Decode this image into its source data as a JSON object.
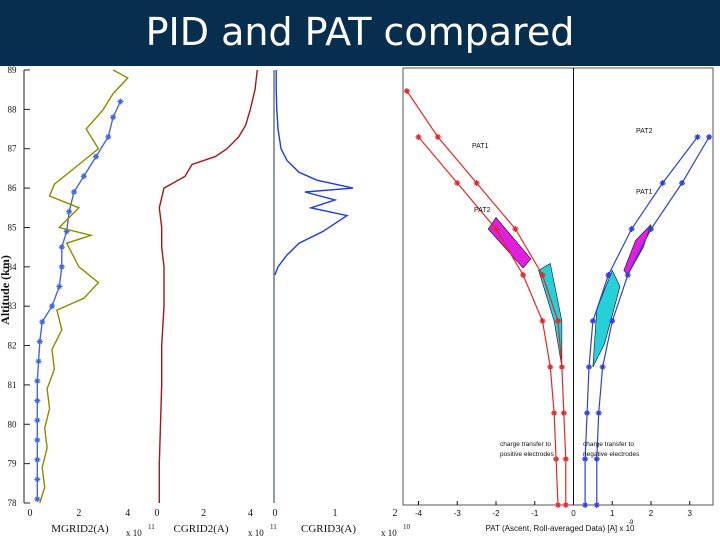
{
  "slide": {
    "title": "PID and PAT compared"
  },
  "chart_data": [
    {
      "type": "line",
      "ylabel": "Altitude (km)",
      "ylim": [
        78,
        89
      ],
      "yticks": [
        "89",
        "88",
        "87",
        "86",
        "85",
        "84",
        "83",
        "82",
        "81",
        "80",
        "79",
        "78"
      ],
      "panels": [
        {
          "xlabel": "MGRID2(A)",
          "multiplier": "x 10",
          "exponent": "11",
          "xticks": [
            "0",
            "2",
            "4"
          ],
          "xlim": [
            0,
            4.5
          ],
          "series": [
            {
              "color": "#4468d8",
              "marker": "*",
              "points": [
                [
                  0.3,
                  78.1
                ],
                [
                  0.3,
                  78.6
                ],
                [
                  0.3,
                  79.1
                ],
                [
                  0.3,
                  79.6
                ],
                [
                  0.3,
                  80.1
                ],
                [
                  0.3,
                  80.6
                ],
                [
                  0.3,
                  81.1
                ],
                [
                  0.35,
                  81.6
                ],
                [
                  0.4,
                  82.1
                ],
                [
                  0.5,
                  82.6
                ],
                [
                  0.9,
                  83.0
                ],
                [
                  1.2,
                  83.5
                ],
                [
                  1.3,
                  84.0
                ],
                [
                  1.3,
                  84.5
                ],
                [
                  1.5,
                  84.9
                ],
                [
                  1.6,
                  85.4
                ],
                [
                  1.8,
                  85.9
                ],
                [
                  2.2,
                  86.3
                ],
                [
                  2.7,
                  86.8
                ],
                [
                  3.2,
                  87.3
                ],
                [
                  3.4,
                  87.8
                ],
                [
                  3.7,
                  88.2
                ]
              ]
            },
            {
              "color": "#8b8b00",
              "points": [
                [
                  0.4,
                  78.0
                ],
                [
                  0.6,
                  78.4
                ],
                [
                  0.5,
                  78.9
                ],
                [
                  0.7,
                  79.4
                ],
                [
                  0.6,
                  79.9
                ],
                [
                  0.8,
                  80.4
                ],
                [
                  0.7,
                  80.9
                ],
                [
                  1.0,
                  81.4
                ],
                [
                  0.9,
                  81.9
                ],
                [
                  1.3,
                  82.4
                ],
                [
                  1.1,
                  82.9
                ],
                [
                  2.2,
                  83.2
                ],
                [
                  2.8,
                  83.6
                ],
                [
                  2.0,
                  84.0
                ],
                [
                  1.5,
                  84.6
                ],
                [
                  2.5,
                  84.8
                ],
                [
                  1.2,
                  85.0
                ],
                [
                  2.0,
                  85.5
                ],
                [
                  0.8,
                  85.8
                ],
                [
                  1.0,
                  86.1
                ],
                [
                  2.0,
                  86.6
                ],
                [
                  2.8,
                  87.0
                ],
                [
                  2.3,
                  87.5
                ],
                [
                  3.0,
                  88.0
                ],
                [
                  3.4,
                  88.4
                ],
                [
                  4.0,
                  88.8
                ],
                [
                  3.4,
                  89.0
                ]
              ]
            }
          ]
        },
        {
          "xlabel": "CGRID2(A)",
          "multiplier": "x 10",
          "exponent": "11",
          "xticks": [
            "0",
            "2",
            "4"
          ],
          "xlim": [
            -0.3,
            4.5
          ],
          "series": [
            {
              "color": "#a01a1a",
              "points": [
                [
                  0.1,
                  78.0
                ],
                [
                  0.1,
                  79.0
                ],
                [
                  0.15,
                  80.0
                ],
                [
                  0.2,
                  81.0
                ],
                [
                  0.2,
                  82.0
                ],
                [
                  0.3,
                  83.0
                ],
                [
                  0.3,
                  84.0
                ],
                [
                  0.2,
                  84.5
                ],
                [
                  0.2,
                  85.0
                ],
                [
                  0.1,
                  85.5
                ],
                [
                  0.3,
                  86.0
                ],
                [
                  1.2,
                  86.3
                ],
                [
                  1.5,
                  86.6
                ],
                [
                  2.5,
                  86.8
                ],
                [
                  3.0,
                  87.0
                ],
                [
                  3.5,
                  87.3
                ],
                [
                  3.8,
                  87.6
                ],
                [
                  4.0,
                  88.0
                ],
                [
                  4.2,
                  88.5
                ],
                [
                  4.3,
                  89.0
                ]
              ]
            }
          ]
        },
        {
          "xlabel": "CGRID3(A)",
          "multiplier": "x 10",
          "exponent": "10",
          "xticks": [
            "0",
            "1",
            "2"
          ],
          "xlim": [
            -0.05,
            2.0
          ],
          "series": [
            {
              "color": "#1e3cd8",
              "points": [
                [
                  0.0,
                  83.8
                ],
                [
                  0.05,
                  84.0
                ],
                [
                  0.2,
                  84.3
                ],
                [
                  0.4,
                  84.6
                ],
                [
                  0.8,
                  84.9
                ],
                [
                  1.2,
                  85.3
                ],
                [
                  0.6,
                  85.5
                ],
                [
                  1.0,
                  85.7
                ],
                [
                  0.5,
                  85.9
                ],
                [
                  1.3,
                  86.0
                ],
                [
                  0.7,
                  86.2
                ],
                [
                  0.4,
                  86.4
                ],
                [
                  0.2,
                  86.7
                ],
                [
                  0.1,
                  87.0
                ],
                [
                  0.05,
                  87.5
                ],
                [
                  0.03,
                  88.0
                ],
                [
                  0.02,
                  88.5
                ],
                [
                  0.02,
                  89.0
                ]
              ]
            }
          ]
        }
      ]
    },
    {
      "type": "line",
      "xlabel": "PAT  (Ascent, Roll-averaged Data)  [A] x 10",
      "exponent": "-9",
      "xlim": [
        -4.4,
        3.6
      ],
      "xticks": [
        "-4",
        "-3",
        "-2",
        "-1",
        "0",
        "1",
        "2",
        "3"
      ],
      "annotations": [
        "PAT1",
        "PAT2",
        "PAT2",
        "PAT1",
        "charge transfer to positive electrodes",
        "charge transfer to negative electrodes"
      ],
      "series": [
        {
          "color": "#e02a2a",
          "marker": "*",
          "points": [
            [
              -0.2,
              0.0
            ],
            [
              -0.2,
              0.2
            ],
            [
              -0.25,
              0.4
            ],
            [
              -0.3,
              0.6
            ],
            [
              -0.4,
              0.8
            ],
            [
              -0.8,
              1.0
            ],
            [
              -1.5,
              1.2
            ],
            [
              -2.5,
              1.4
            ],
            [
              -3.5,
              1.6
            ],
            [
              -4.3,
              1.8
            ]
          ]
        },
        {
          "color": "#e02a2a",
          "marker": "*",
          "points": [
            [
              -0.4,
              0.0
            ],
            [
              -0.45,
              0.2
            ],
            [
              -0.5,
              0.4
            ],
            [
              -0.6,
              0.6
            ],
            [
              -0.8,
              0.8
            ],
            [
              -1.3,
              1.0
            ],
            [
              -2.0,
              1.2
            ],
            [
              -3.0,
              1.4
            ],
            [
              -4.0,
              1.6
            ]
          ]
        },
        {
          "color": "#3040d0",
          "marker": "*",
          "points": [
            [
              0.3,
              0.0
            ],
            [
              0.3,
              0.2
            ],
            [
              0.35,
              0.4
            ],
            [
              0.4,
              0.6
            ],
            [
              0.5,
              0.8
            ],
            [
              0.9,
              1.0
            ],
            [
              1.5,
              1.2
            ],
            [
              2.3,
              1.4
            ],
            [
              3.2,
              1.6
            ]
          ]
        },
        {
          "color": "#3040d0",
          "marker": "*",
          "points": [
            [
              0.6,
              0.0
            ],
            [
              0.6,
              0.2
            ],
            [
              0.65,
              0.4
            ],
            [
              0.75,
              0.6
            ],
            [
              1.0,
              0.8
            ],
            [
              1.4,
              1.0
            ],
            [
              2.0,
              1.2
            ],
            [
              2.8,
              1.4
            ],
            [
              3.5,
              1.6
            ]
          ]
        }
      ]
    }
  ]
}
